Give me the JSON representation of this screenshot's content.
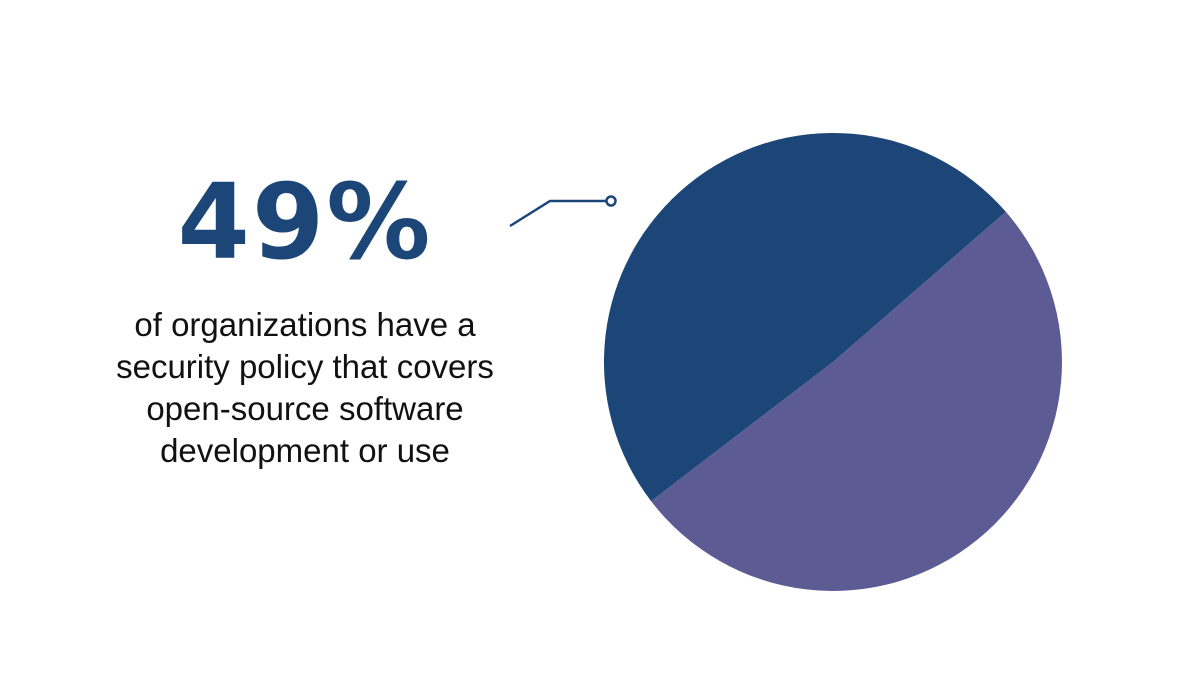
{
  "chart_data": {
    "type": "pie",
    "slices": [
      {
        "value": 49,
        "color": "#1b4677"
      },
      {
        "value": 51,
        "color": "#5d5b94"
      }
    ],
    "highlight_label": "49%",
    "caption": "of organizations have a security policy that covers open-source software development or use",
    "colors": {
      "accent": "#1b4677",
      "secondary": "#5d5b94",
      "caption_text": "#111111"
    }
  }
}
